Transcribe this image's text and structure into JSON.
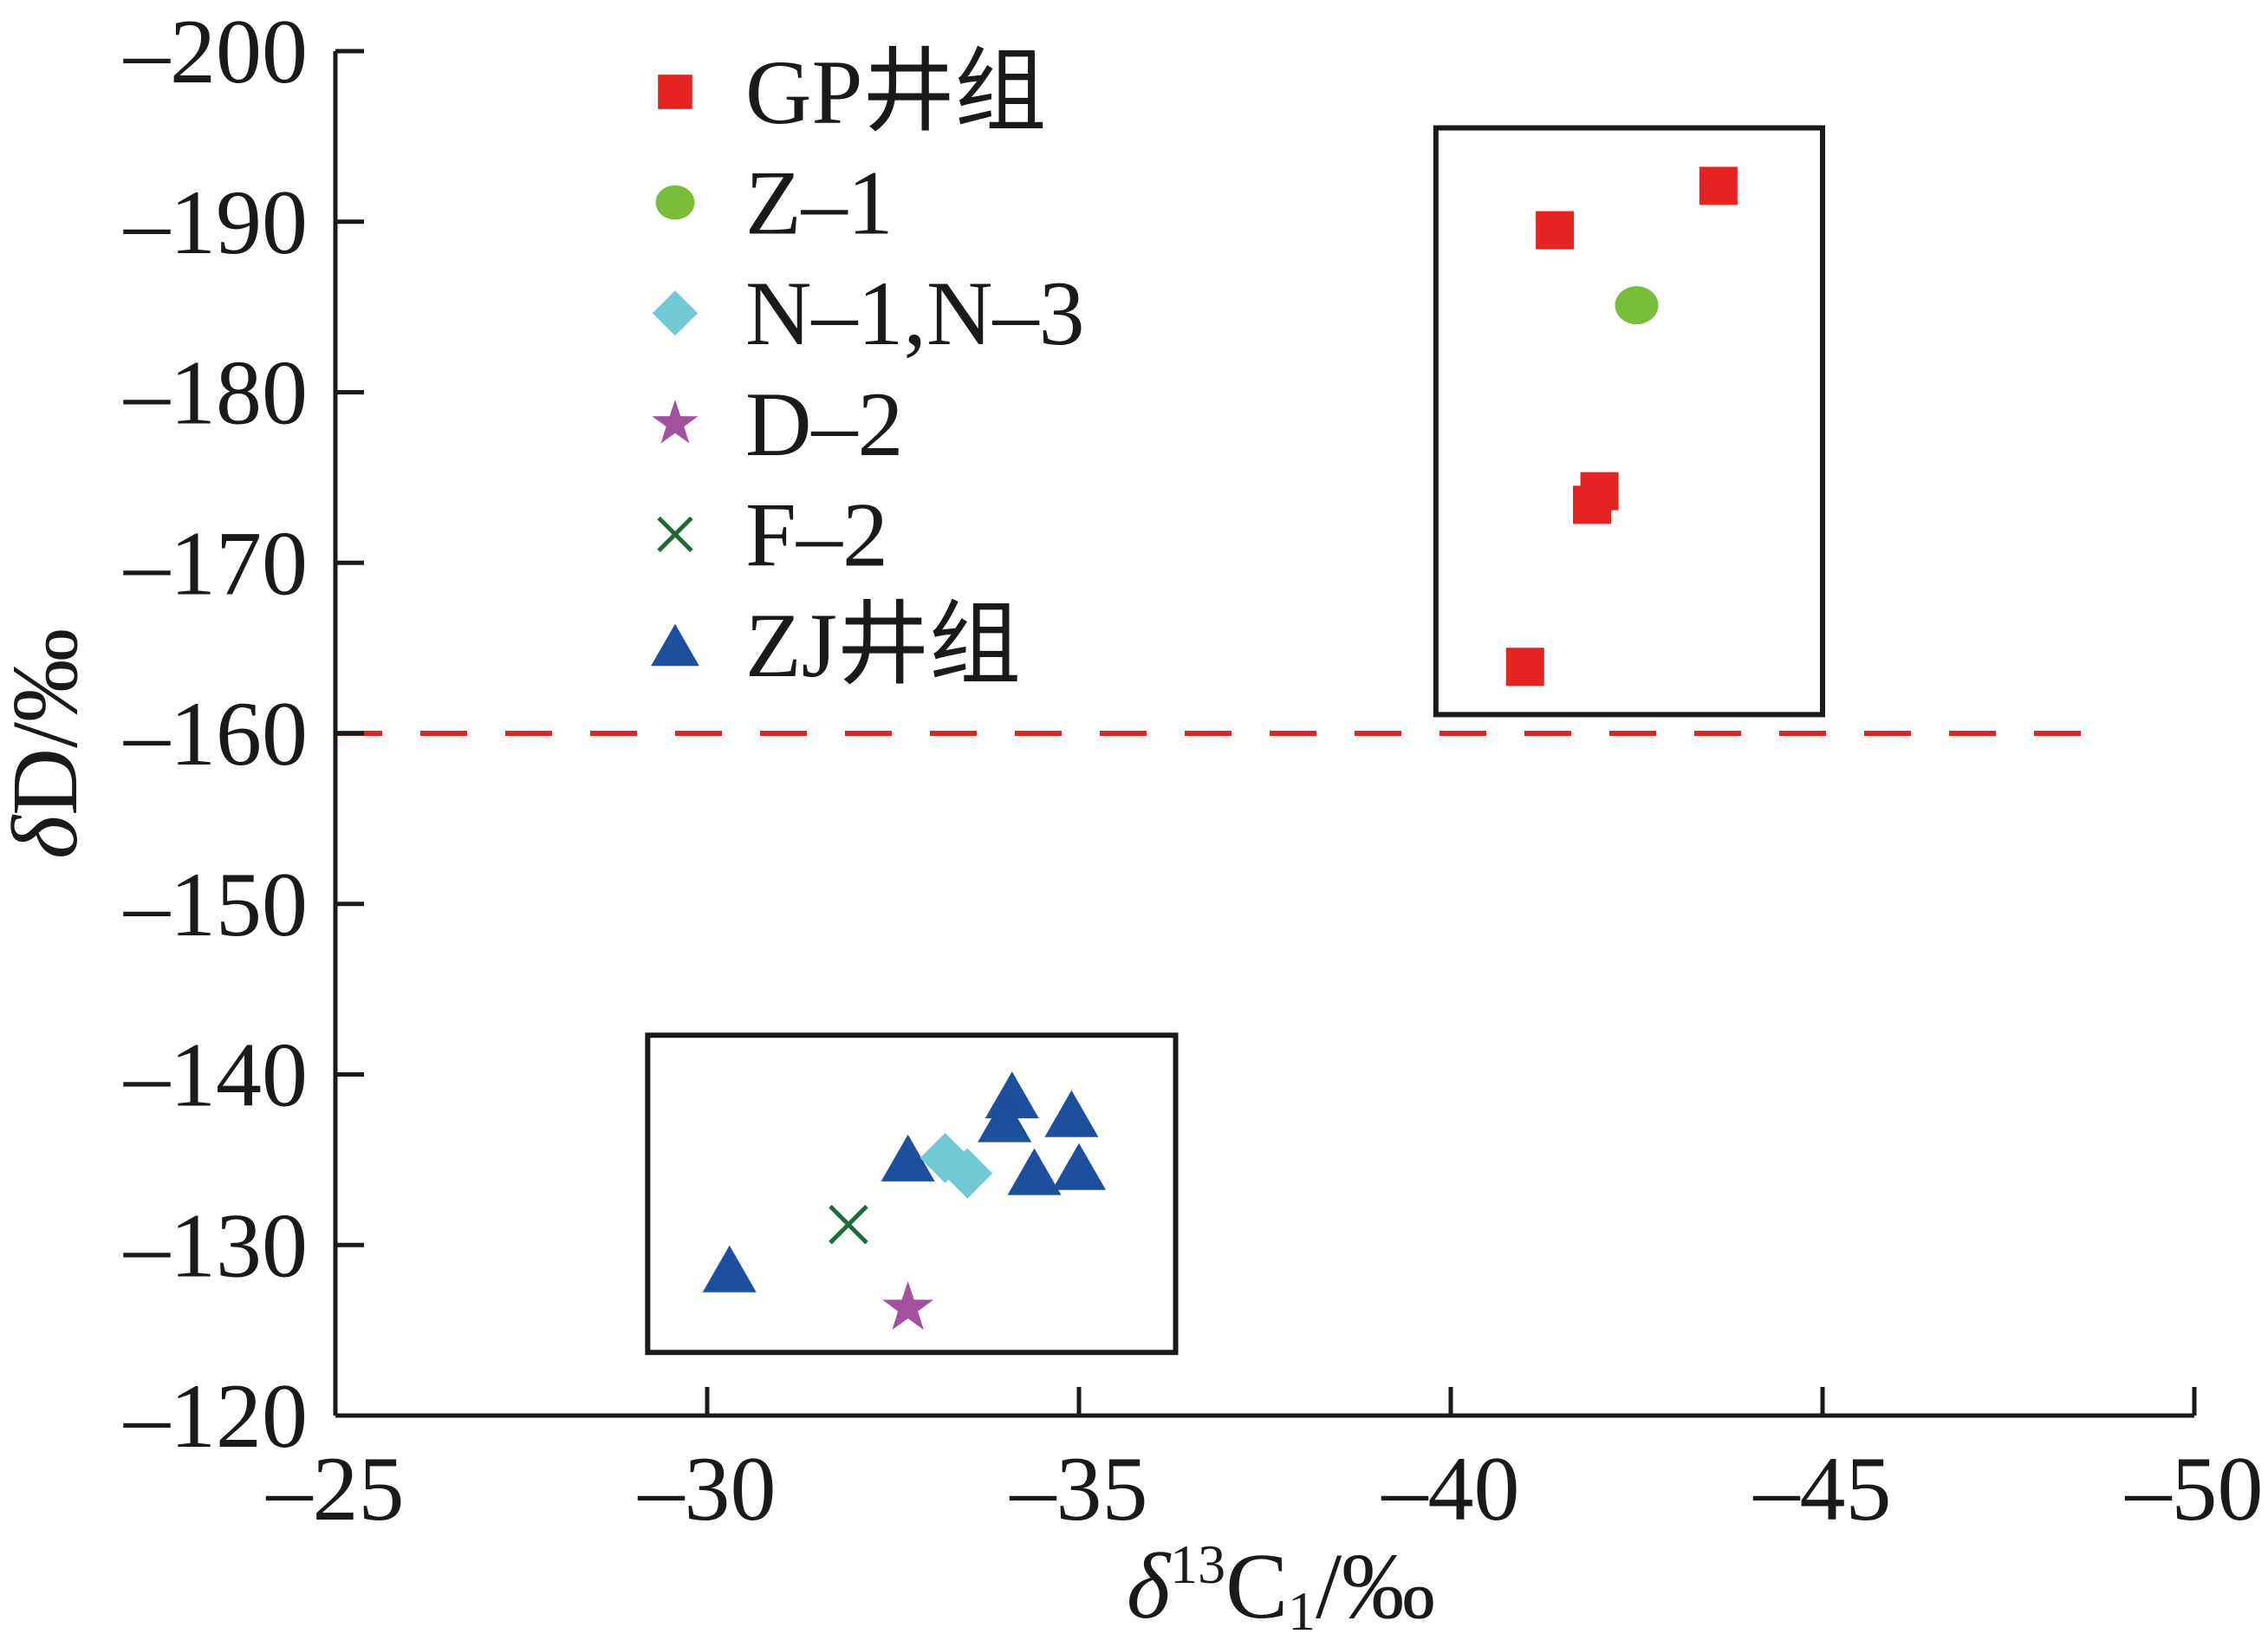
{
  "chart_data": {
    "type": "scatter",
    "xlabel": {
      "symbol": "δ",
      "sup": "13",
      "base": "C",
      "sub": "1",
      "unit": "/‰"
    },
    "ylabel": {
      "symbol": "δ",
      "base": "D",
      "unit": "/‰"
    },
    "xlim": [
      -50,
      -25
    ],
    "x_inverted": true,
    "ylim": [
      -200,
      -120
    ],
    "y_inverted": true,
    "xticks": [
      -25,
      -30,
      -35,
      -40,
      -45,
      -50
    ],
    "xtick_labels": [
      "–25",
      "–30",
      "–35",
      "–40",
      "–45",
      "–50"
    ],
    "yticks": [
      -200,
      -190,
      -180,
      -170,
      -160,
      -150,
      -140,
      -130,
      -120
    ],
    "ytick_labels": [
      "–200",
      "–190",
      "–180",
      "–170",
      "–160",
      "–150",
      "–140",
      "–130",
      "–120"
    ],
    "grid": false,
    "legend": {
      "position": "upper-left",
      "frame": false
    },
    "series": [
      {
        "name": "GP井组",
        "marker": "square",
        "color": "#e52421",
        "points": [
          {
            "x": -41.4,
            "y": -189.5
          },
          {
            "x": -43.6,
            "y": -192.1
          },
          {
            "x": -42.0,
            "y": -174.2
          },
          {
            "x": -41.9,
            "y": -173.4
          },
          {
            "x": -41.0,
            "y": -163.9
          }
        ]
      },
      {
        "name": "Z–1",
        "marker": "circle",
        "color": "#79be3b",
        "points": [
          {
            "x": -42.5,
            "y": -185.1
          }
        ]
      },
      {
        "name": "N–1,N–3",
        "marker": "diamond",
        "color": "#72c9d6",
        "points": [
          {
            "x": -33.2,
            "y": -135.1
          },
          {
            "x": -33.5,
            "y": -134.2
          }
        ]
      },
      {
        "name": "D–2",
        "marker": "star",
        "color": "#a3519f",
        "points": [
          {
            "x": -32.7,
            "y": -126.3
          }
        ]
      },
      {
        "name": "F–2",
        "marker": "cross",
        "color": "#1f6b36",
        "points": [
          {
            "x": -31.9,
            "y": -131.2
          }
        ]
      },
      {
        "name": "ZJ井组",
        "marker": "triangle",
        "color": "#1c4f9c",
        "points": [
          {
            "x": -30.3,
            "y": -128.6
          },
          {
            "x": -32.7,
            "y": -135.1
          },
          {
            "x": -34.1,
            "y": -138.8
          },
          {
            "x": -34.0,
            "y": -137.4
          },
          {
            "x": -34.9,
            "y": -137.7
          },
          {
            "x": -34.4,
            "y": -134.3
          },
          {
            "x": -35.0,
            "y": -134.6
          }
        ]
      }
    ],
    "reference_lines": [
      {
        "orientation": "horizontal",
        "y": -160,
        "x_from": -25,
        "x_to": -48.9,
        "style": "dashed",
        "color": "#e52421"
      }
    ],
    "regions": [
      {
        "x": [
          -39.8,
          -45.0
        ],
        "y": [
          -195.5,
          -161.1
        ],
        "border": "#1a1a1a"
      },
      {
        "x": [
          -29.2,
          -36.3
        ],
        "y": [
          -142.3,
          -123.7
        ],
        "border": "#1a1a1a"
      }
    ]
  }
}
